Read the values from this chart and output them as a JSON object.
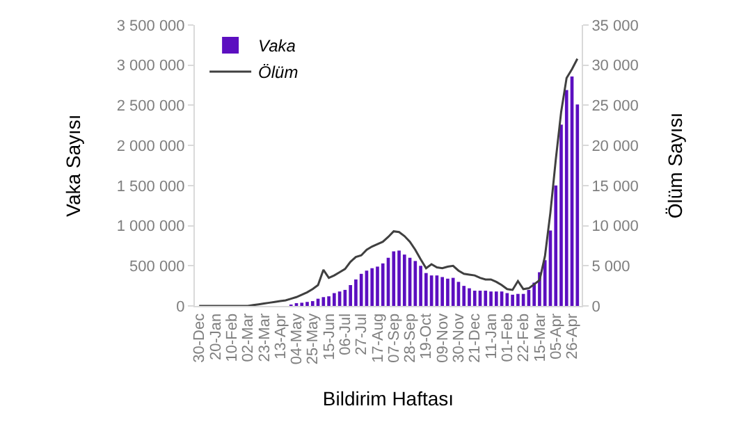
{
  "chart_data": {
    "type": "bar",
    "xlabel": "Bildirim Haftası",
    "ylabel": "Vaka Sayısı",
    "y2label": "Ölüm Sayısı",
    "categories": [
      "30-Dec",
      null,
      null,
      "20-Jan",
      null,
      null,
      "10-Feb",
      null,
      null,
      "02-Mar",
      null,
      null,
      "23-Mar",
      null,
      null,
      "13-Apr",
      null,
      null,
      "04-May",
      null,
      null,
      "25-May",
      null,
      null,
      "15-Jun",
      null,
      null,
      "06-Jul",
      null,
      null,
      "27-Jul",
      null,
      null,
      "17-Aug",
      null,
      null,
      "07-Sep",
      null,
      null,
      "28-Sep",
      null,
      null,
      "19-Oct",
      null,
      null,
      "09-Nov",
      null,
      null,
      "30-Nov",
      null,
      null,
      "21-Dec",
      null,
      null,
      "11-Jan",
      null,
      null,
      "01-Feb",
      null,
      null,
      "22-Feb",
      null,
      null,
      "15-Mar",
      null,
      null,
      "05-Apr",
      null,
      null,
      "26-Apr",
      null
    ],
    "series": [
      {
        "name": "Vaka",
        "color": "#5c0fc0",
        "values": [
          0,
          0,
          0,
          0,
          0,
          0,
          0,
          0,
          0,
          0,
          0,
          0,
          0,
          0,
          0,
          0,
          0,
          10000,
          30000,
          40000,
          50000,
          60000,
          90000,
          110000,
          120000,
          160000,
          180000,
          200000,
          260000,
          330000,
          400000,
          440000,
          470000,
          490000,
          530000,
          600000,
          680000,
          690000,
          640000,
          600000,
          560000,
          500000,
          410000,
          380000,
          380000,
          360000,
          340000,
          350000,
          300000,
          250000,
          220000,
          190000,
          190000,
          190000,
          180000,
          180000,
          180000,
          160000,
          140000,
          150000,
          150000,
          200000,
          290000,
          420000,
          570000,
          940000,
          1500000,
          2260000,
          2690000,
          2860000,
          2510000
        ]
      },
      {
        "name": "Ölüm",
        "type": "line",
        "axis": "y2",
        "color": "#404040",
        "values": [
          0,
          0,
          0,
          0,
          0,
          0,
          0,
          0,
          0,
          0,
          100,
          200,
          300,
          400,
          500,
          600,
          700,
          900,
          1100,
          1400,
          1700,
          2100,
          2600,
          4500,
          3500,
          3800,
          4200,
          4600,
          5500,
          6100,
          6300,
          7000,
          7400,
          7700,
          8000,
          8600,
          9300,
          9200,
          8700,
          8000,
          7000,
          5800,
          4700,
          5200,
          4800,
          4700,
          4900,
          5000,
          4400,
          4000,
          3900,
          3800,
          3500,
          3300,
          3300,
          3000,
          2600,
          2100,
          2000,
          3100,
          2100,
          2200,
          2700,
          3200,
          6200,
          11600,
          18200,
          24200,
          28400,
          29500,
          30800
        ]
      }
    ],
    "ylim": [
      0,
      3500000
    ],
    "yticks": [
      0,
      {
        "value": 500000,
        "label": "500 000"
      },
      {
        "value": 1000000,
        "label": "1 000 000"
      },
      {
        "value": 1500000,
        "label": "1 500 000"
      },
      {
        "value": 2000000,
        "label": "2 000 000"
      },
      {
        "value": 2500000,
        "label": "2 500 000"
      },
      {
        "value": 3000000,
        "label": "3 000 000"
      },
      {
        "value": 3500000,
        "label": "3 500 000"
      }
    ],
    "y2lim": [
      0,
      35000
    ],
    "y2ticks": [
      0,
      {
        "value": 5000,
        "label": "5 000"
      },
      {
        "value": 10000,
        "label": "10 000"
      },
      {
        "value": 15000,
        "label": "15 000"
      },
      {
        "value": 20000,
        "label": "20 000"
      },
      {
        "value": 25000,
        "label": "25 000"
      },
      {
        "value": 30000,
        "label": "30 000"
      },
      {
        "value": 35000,
        "label": "35 000"
      }
    ],
    "grid": false,
    "legend": "top left",
    "marker": "none",
    "line_style": "solid"
  }
}
